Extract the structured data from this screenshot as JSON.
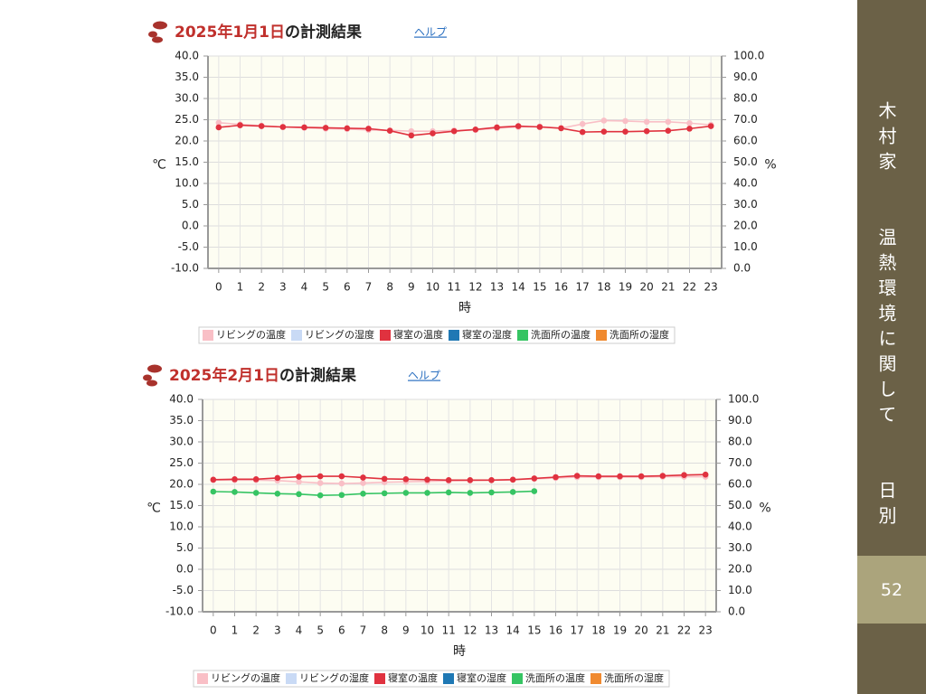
{
  "sidebar": {
    "title": "木村家　　温熱環境に関して　　日別",
    "page": "52"
  },
  "chart_data": [
    {
      "type": "line",
      "title_date": "2025年1月1日",
      "title_rest": "の計測結果",
      "help": "ヘルプ",
      "ylabel": "℃",
      "y2label": "%",
      "xlabel": "時",
      "x": [
        0,
        1,
        2,
        3,
        4,
        5,
        6,
        7,
        8,
        9,
        10,
        11,
        12,
        13,
        14,
        15,
        16,
        17,
        18,
        19,
        20,
        21,
        22,
        23
      ],
      "ylim": [
        -10,
        40
      ],
      "yticks": [
        {
          "value": -10,
          "label": "-10.0"
        },
        {
          "value": -5,
          "label": "-5.0"
        },
        {
          "value": 0,
          "label": "0.0"
        },
        {
          "value": 5,
          "label": "5.0"
        },
        {
          "value": 10,
          "label": "10.0"
        },
        {
          "value": 15,
          "label": "15.0"
        },
        {
          "value": 20,
          "label": "20.0"
        },
        {
          "value": 25,
          "label": "25.0"
        },
        {
          "value": 30,
          "label": "30.0"
        },
        {
          "value": 35,
          "label": "35.0"
        },
        {
          "value": 40,
          "label": "40.0"
        }
      ],
      "y2lim": [
        0,
        100
      ],
      "y2ticks": [
        {
          "value": 0,
          "label": "0.0"
        },
        {
          "value": 10,
          "label": "10.0"
        },
        {
          "value": 20,
          "label": "20.0"
        },
        {
          "value": 30,
          "label": "30.0"
        },
        {
          "value": 40,
          "label": "40.0"
        },
        {
          "value": 50,
          "label": "50.0"
        },
        {
          "value": 60,
          "label": "60.0"
        },
        {
          "value": 70,
          "label": "70.0"
        },
        {
          "value": 80,
          "label": "80.0"
        },
        {
          "value": 90,
          "label": "90.0"
        },
        {
          "value": 100,
          "label": "100.0"
        }
      ],
      "grid": true,
      "series": [
        {
          "name": "リビングの温度",
          "color": "#f9bfc6",
          "values": [
            24.3,
            23.9,
            23.6,
            23.3,
            23.1,
            22.9,
            22.8,
            22.6,
            22.5,
            22.3,
            22.3,
            22.5,
            22.6,
            23.0,
            23.3,
            23.4,
            23.0,
            24.0,
            24.8,
            24.7,
            24.5,
            24.5,
            24.2,
            23.8
          ]
        },
        {
          "name": "リビングの湿度",
          "color": "#c9daf5",
          "axis": "y2",
          "values": [
            null,
            null,
            null,
            null,
            null,
            null,
            null,
            null,
            null,
            null,
            null,
            null,
            null,
            null,
            null,
            null,
            null,
            null,
            null,
            null,
            null,
            null,
            null,
            null
          ]
        },
        {
          "name": "寝室の温度",
          "color": "#e0323f",
          "values": [
            23.2,
            23.7,
            23.5,
            23.3,
            23.2,
            23.1,
            23.0,
            22.9,
            22.4,
            21.3,
            21.8,
            22.3,
            22.7,
            23.2,
            23.5,
            23.3,
            23.0,
            22.1,
            22.2,
            22.2,
            22.3,
            22.4,
            22.9,
            23.5
          ]
        },
        {
          "name": "寝室の湿度",
          "color": "#1f78b4",
          "axis": "y2",
          "values": [
            null,
            null,
            null,
            null,
            null,
            null,
            null,
            null,
            null,
            null,
            null,
            null,
            null,
            null,
            null,
            null,
            null,
            null,
            null,
            null,
            null,
            null,
            null,
            null
          ]
        },
        {
          "name": "洗面所の温度",
          "color": "#36c463",
          "values": [
            null,
            null,
            null,
            null,
            null,
            null,
            null,
            null,
            null,
            null,
            null,
            null,
            null,
            null,
            null,
            null,
            null,
            null,
            null,
            null,
            null,
            null,
            null,
            null
          ]
        },
        {
          "name": "洗面所の湿度",
          "color": "#f08a30",
          "axis": "y2",
          "values": [
            null,
            null,
            null,
            null,
            null,
            null,
            null,
            null,
            null,
            null,
            null,
            null,
            null,
            null,
            null,
            null,
            null,
            null,
            null,
            null,
            null,
            null,
            null,
            null
          ]
        }
      ]
    },
    {
      "type": "line",
      "title_date": "2025年2月1日",
      "title_rest": "の計測結果",
      "help": "ヘルプ",
      "ylabel": "℃",
      "y2label": "%",
      "xlabel": "時",
      "x": [
        0,
        1,
        2,
        3,
        4,
        5,
        6,
        7,
        8,
        9,
        10,
        11,
        12,
        13,
        14,
        15,
        16,
        17,
        18,
        19,
        20,
        21,
        22,
        23
      ],
      "ylim": [
        -10,
        40
      ],
      "yticks": [
        {
          "value": -10,
          "label": "-10.0"
        },
        {
          "value": -5,
          "label": "-5.0"
        },
        {
          "value": 0,
          "label": "0.0"
        },
        {
          "value": 5,
          "label": "5.0"
        },
        {
          "value": 10,
          "label": "10.0"
        },
        {
          "value": 15,
          "label": "15.0"
        },
        {
          "value": 20,
          "label": "20.0"
        },
        {
          "value": 25,
          "label": "25.0"
        },
        {
          "value": 30,
          "label": "30.0"
        },
        {
          "value": 35,
          "label": "35.0"
        },
        {
          "value": 40,
          "label": "40.0"
        }
      ],
      "y2lim": [
        0,
        100
      ],
      "y2ticks": [
        {
          "value": 0,
          "label": "0.0"
        },
        {
          "value": 10,
          "label": "10.0"
        },
        {
          "value": 20,
          "label": "20.0"
        },
        {
          "value": 30,
          "label": "30.0"
        },
        {
          "value": 40,
          "label": "40.0"
        },
        {
          "value": 50,
          "label": "50.0"
        },
        {
          "value": 60,
          "label": "60.0"
        },
        {
          "value": 70,
          "label": "70.0"
        },
        {
          "value": 80,
          "label": "80.0"
        },
        {
          "value": 90,
          "label": "90.0"
        },
        {
          "value": 100,
          "label": "100.0"
        }
      ],
      "grid": true,
      "series": [
        {
          "name": "リビングの温度",
          "color": "#f9bfc6",
          "values": [
            21.0,
            21.0,
            21.0,
            20.9,
            20.6,
            20.3,
            20.2,
            20.3,
            20.5,
            20.6,
            20.7,
            20.8,
            20.9,
            21.0,
            21.1,
            21.3,
            21.5,
            21.7,
            21.7,
            21.7,
            21.7,
            21.8,
            21.8,
            21.8
          ]
        },
        {
          "name": "リビングの湿度",
          "color": "#c9daf5",
          "axis": "y2",
          "values": [
            null,
            null,
            null,
            null,
            null,
            null,
            null,
            null,
            null,
            null,
            null,
            null,
            null,
            null,
            null,
            null,
            null,
            null,
            null,
            null,
            null,
            null,
            null,
            null
          ]
        },
        {
          "name": "寝室の温度",
          "color": "#e0323f",
          "values": [
            21.1,
            21.2,
            21.2,
            21.5,
            21.8,
            21.9,
            21.9,
            21.6,
            21.3,
            21.2,
            21.1,
            21.0,
            21.0,
            21.0,
            21.1,
            21.4,
            21.7,
            22.0,
            21.9,
            21.9,
            21.9,
            22.0,
            22.2,
            22.3
          ]
        },
        {
          "name": "寝室の湿度",
          "color": "#1f78b4",
          "axis": "y2",
          "values": [
            null,
            null,
            null,
            null,
            null,
            null,
            null,
            null,
            null,
            null,
            null,
            null,
            null,
            null,
            null,
            null,
            null,
            null,
            null,
            null,
            null,
            null,
            null,
            null
          ]
        },
        {
          "name": "洗面所の温度",
          "color": "#36c463",
          "values": [
            18.3,
            18.2,
            18.0,
            17.8,
            17.7,
            17.4,
            17.5,
            17.8,
            17.9,
            18.0,
            18.0,
            18.1,
            18.0,
            18.1,
            18.2,
            18.4,
            null,
            null,
            null,
            null,
            null,
            null,
            null,
            null
          ]
        },
        {
          "name": "洗面所の湿度",
          "color": "#f08a30",
          "axis": "y2",
          "values": [
            null,
            null,
            null,
            null,
            null,
            null,
            null,
            null,
            null,
            null,
            null,
            null,
            null,
            null,
            null,
            null,
            null,
            null,
            null,
            null,
            null,
            null,
            null,
            null
          ]
        }
      ]
    }
  ]
}
